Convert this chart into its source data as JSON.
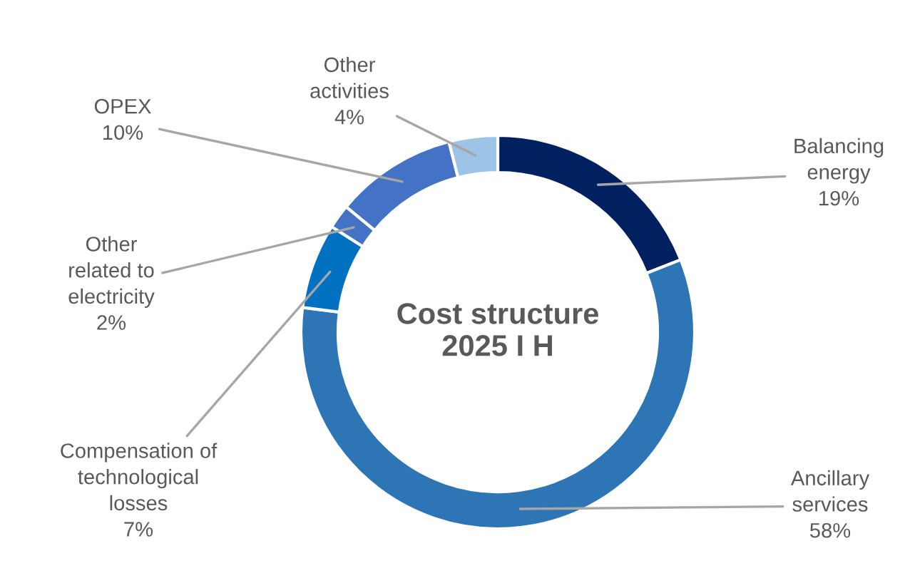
{
  "chart_data": {
    "type": "donut",
    "title": "Cost structure\n2025 I H",
    "categories": [
      "Balancing\nenergy",
      "Ancillary\nservices",
      "Compensation of\ntechnological\nlosses",
      "Other\nrelated to\nelectricity",
      "OPEX",
      "Other\nactivities"
    ],
    "values": [
      19,
      58,
      7,
      2,
      10,
      4
    ],
    "colors": [
      "#002060",
      "#2e75b6",
      "#0070c0",
      "#4472c4",
      "#4472c4",
      "#9dc3e6"
    ],
    "value_labels": [
      "19%",
      "58%",
      "7%",
      "2%",
      "10%",
      "4%"
    ],
    "legend": false
  }
}
